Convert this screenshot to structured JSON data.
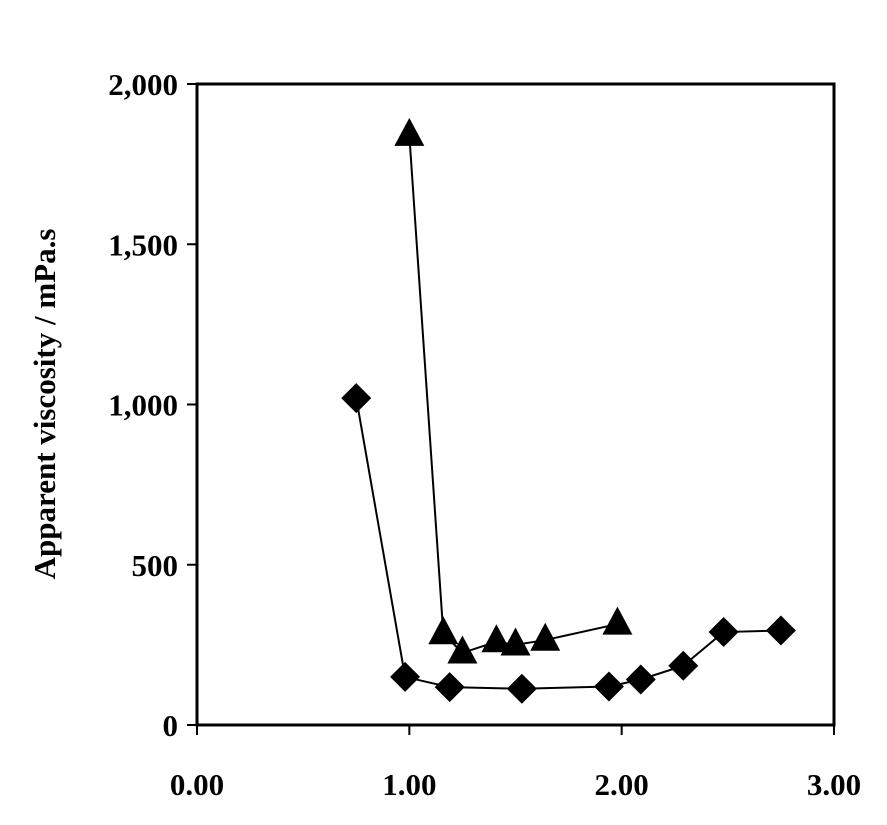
{
  "chart_data": {
    "type": "scatter",
    "title": "",
    "xlabel": "",
    "ylabel": "Apparent viscosity / mPa.s",
    "xlim": [
      0,
      3
    ],
    "ylim": [
      0,
      2000
    ],
    "x_ticks": [
      0,
      1,
      2,
      3
    ],
    "x_tick_labels": [
      "0.00",
      "1.00",
      "2.00",
      "3.00"
    ],
    "y_ticks": [
      0,
      500,
      1000,
      1500,
      2000
    ],
    "y_tick_labels": [
      "0",
      "500",
      "1,000",
      "1,500",
      "2,000"
    ],
    "grid": false,
    "legend": "none",
    "series": [
      {
        "marker": "diamond",
        "color": "#000000",
        "points": [
          [
            0.75,
            1020
          ],
          [
            0.98,
            150
          ],
          [
            1.19,
            118
          ],
          [
            1.53,
            113
          ],
          [
            1.94,
            120
          ],
          [
            2.09,
            142
          ],
          [
            2.29,
            185
          ],
          [
            2.48,
            290
          ],
          [
            2.75,
            295
          ]
        ]
      },
      {
        "marker": "triangle",
        "color": "#000000",
        "points": [
          [
            1.0,
            1840
          ],
          [
            1.16,
            285
          ],
          [
            1.25,
            225
          ],
          [
            1.41,
            260
          ],
          [
            1.5,
            250
          ],
          [
            1.64,
            265
          ],
          [
            1.98,
            315
          ]
        ]
      }
    ]
  }
}
